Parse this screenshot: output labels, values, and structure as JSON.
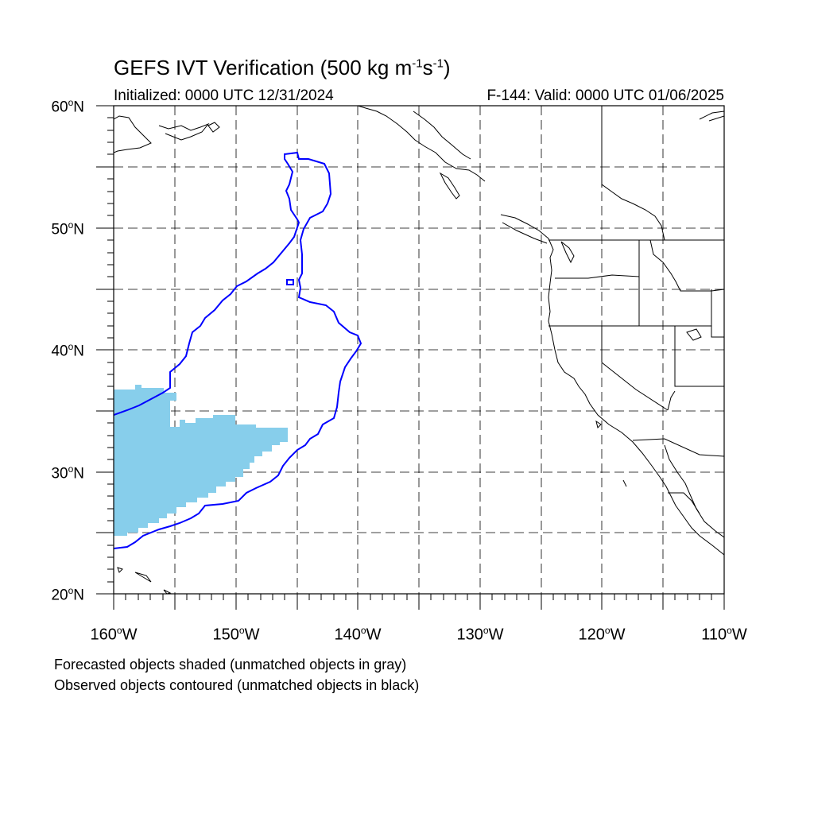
{
  "title": {
    "text": "GEFS IVT Verification (500 kg m",
    "sup1": "-1",
    "mid": "s",
    "sup2": "-1",
    "end": ")"
  },
  "initialized": "Initialized: 0000 UTC 12/31/2024",
  "valid": "F-144: Valid: 0000 UTC 01/06/2025",
  "lat_labels": [
    {
      "value": "60",
      "unit": "o",
      "hemi": "N"
    },
    {
      "value": "50",
      "unit": "o",
      "hemi": "N"
    },
    {
      "value": "40",
      "unit": "o",
      "hemi": "N"
    },
    {
      "value": "30",
      "unit": "o",
      "hemi": "N"
    },
    {
      "value": "20",
      "unit": "o",
      "hemi": "N"
    }
  ],
  "lon_labels": [
    {
      "value": "160",
      "unit": "o",
      "hemi": "W"
    },
    {
      "value": "150",
      "unit": "o",
      "hemi": "W"
    },
    {
      "value": "140",
      "unit": "o",
      "hemi": "W"
    },
    {
      "value": "130",
      "unit": "o",
      "hemi": "W"
    },
    {
      "value": "120",
      "unit": "o",
      "hemi": "W"
    },
    {
      "value": "110",
      "unit": "o",
      "hemi": "W"
    }
  ],
  "footnotes": [
    "Forecasted objects shaded (unmatched objects in gray)",
    "Observed objects contoured (unmatched objects in black)"
  ],
  "colors": {
    "forecast_shade": "#87ceeb",
    "observed_contour": "#0000ff",
    "coastline": "#000000",
    "grid": "#000000"
  },
  "map_extent": {
    "lon_min": -160,
    "lon_max": -110,
    "lat_min": 20,
    "lat_max": 60,
    "grid_lon_step": 5,
    "grid_lat_step": 5
  }
}
